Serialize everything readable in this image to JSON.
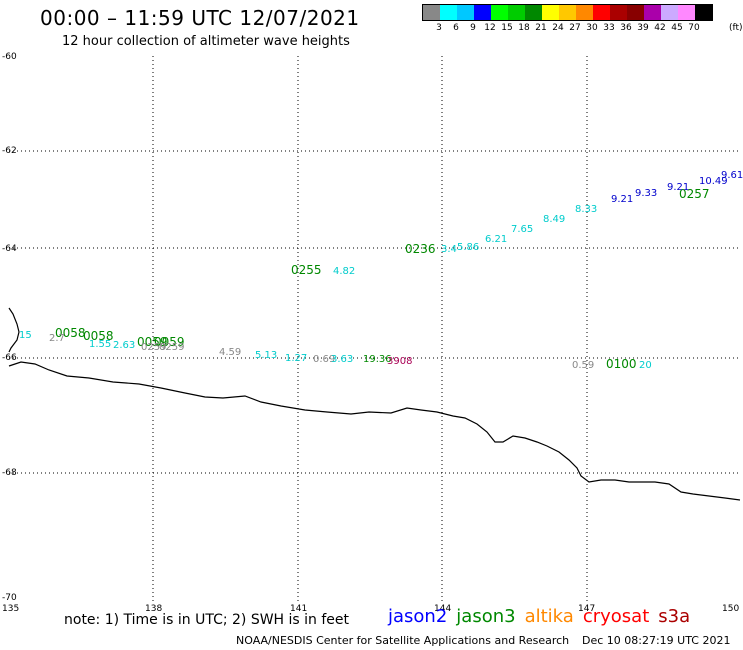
{
  "header": {
    "title": "00:00 – 11:59 UTC 12/07/2021",
    "subtitle": "12 hour collection of altimeter wave heights"
  },
  "legend": {
    "colors": [
      "#888888",
      "#00ffff",
      "#00c8ff",
      "#0000ff",
      "#00ff00",
      "#00cc00",
      "#008800",
      "#ffff00",
      "#ffc800",
      "#ff8800",
      "#ff0000",
      "#aa0000",
      "#880000",
      "#aa00aa",
      "#ccaaff",
      "#ff88ff",
      "#000000"
    ],
    "labels": [
      "3",
      "6",
      "9",
      "12",
      "15",
      "18",
      "21",
      "24",
      "27",
      "30",
      "33",
      "36",
      "39",
      "42",
      "45",
      "70"
    ],
    "unit": "(ft)"
  },
  "map": {
    "lat_labels": [
      "-60",
      "-62",
      "-64",
      "-66",
      "-68",
      "-70"
    ],
    "lon_labels": [
      "135",
      "138",
      "141",
      "144",
      "147",
      "150"
    ],
    "coastline_color": "#000000",
    "grid_color": "#000000"
  },
  "observations": [
    {
      "text": "15",
      "color": "#00cccc",
      "size": 10
    },
    {
      "text": "0058",
      "color": "#008800",
      "size": 12
    },
    {
      "text": "2.7",
      "color": "#888888",
      "size": 10
    },
    {
      "text": "0058",
      "color": "#008800",
      "size": 12
    },
    {
      "text": "1.55",
      "color": "#00cccc",
      "size": 10
    },
    {
      "text": "2.63",
      "color": "#00cccc",
      "size": 10
    },
    {
      "text": "0059",
      "color": "#008800",
      "size": 12
    },
    {
      "text": "0059",
      "color": "#008800",
      "size": 12
    },
    {
      "text": "0259",
      "color": "#888888",
      "size": 10
    },
    {
      "text": "0259",
      "color": "#888888",
      "size": 10
    },
    {
      "text": "4.59",
      "color": "#888888",
      "size": 10
    },
    {
      "text": "5.13",
      "color": "#00cccc",
      "size": 10
    },
    {
      "text": "1.27",
      "color": "#00cccc",
      "size": 10
    },
    {
      "text": "0.69",
      "color": "#888888",
      "size": 10
    },
    {
      "text": "3.63",
      "color": "#00cccc",
      "size": 10
    },
    {
      "text": "19.36",
      "color": "#008800",
      "size": 10
    },
    {
      "text": "3908",
      "color": "#aa0055",
      "size": 10
    },
    {
      "text": "0255",
      "color": "#008800",
      "size": 12
    },
    {
      "text": "4.82",
      "color": "#00cccc",
      "size": 10
    },
    {
      "text": "0236",
      "color": "#008800",
      "size": 12
    },
    {
      "text": "3.4",
      "color": "#00cccc",
      "size": 10
    },
    {
      "text": "5.86",
      "color": "#00cccc",
      "size": 10
    },
    {
      "text": "6.21",
      "color": "#00cccc",
      "size": 10
    },
    {
      "text": "7.65",
      "color": "#00cccc",
      "size": 10
    },
    {
      "text": "8.49",
      "color": "#00cccc",
      "size": 10
    },
    {
      "text": "8.33",
      "color": "#00cccc",
      "size": 10
    },
    {
      "text": "9.21",
      "color": "#0000cc",
      "size": 10
    },
    {
      "text": "9.33",
      "color": "#0000cc",
      "size": 10
    },
    {
      "text": "0257",
      "color": "#008800",
      "size": 12
    },
    {
      "text": "9.21",
      "color": "#0000cc",
      "size": 10
    },
    {
      "text": "10.49",
      "color": "#0000cc",
      "size": 10
    },
    {
      "text": "9.61",
      "color": "#0000cc",
      "size": 10
    },
    {
      "text": "0.59",
      "color": "#888888",
      "size": 10
    },
    {
      "text": "0100",
      "color": "#008800",
      "size": 12
    },
    {
      "text": "20",
      "color": "#00cccc",
      "size": 10
    }
  ],
  "footer": {
    "note": "note:  1) Time is in UTC;  2) SWH is in feet",
    "satellites": [
      {
        "name": "jason2",
        "color": "#0000ff"
      },
      {
        "name": "jason3",
        "color": "#008800"
      },
      {
        "name": "altika",
        "color": "#ff8800"
      },
      {
        "name": "cryosat",
        "color": "#ff0000"
      },
      {
        "name": "s3a",
        "color": "#aa0000"
      }
    ],
    "credit": "NOAA/NESDIS Center for Satellite Applications and Research",
    "generated": "Dec 10 08:27:19 UTC 2021"
  }
}
